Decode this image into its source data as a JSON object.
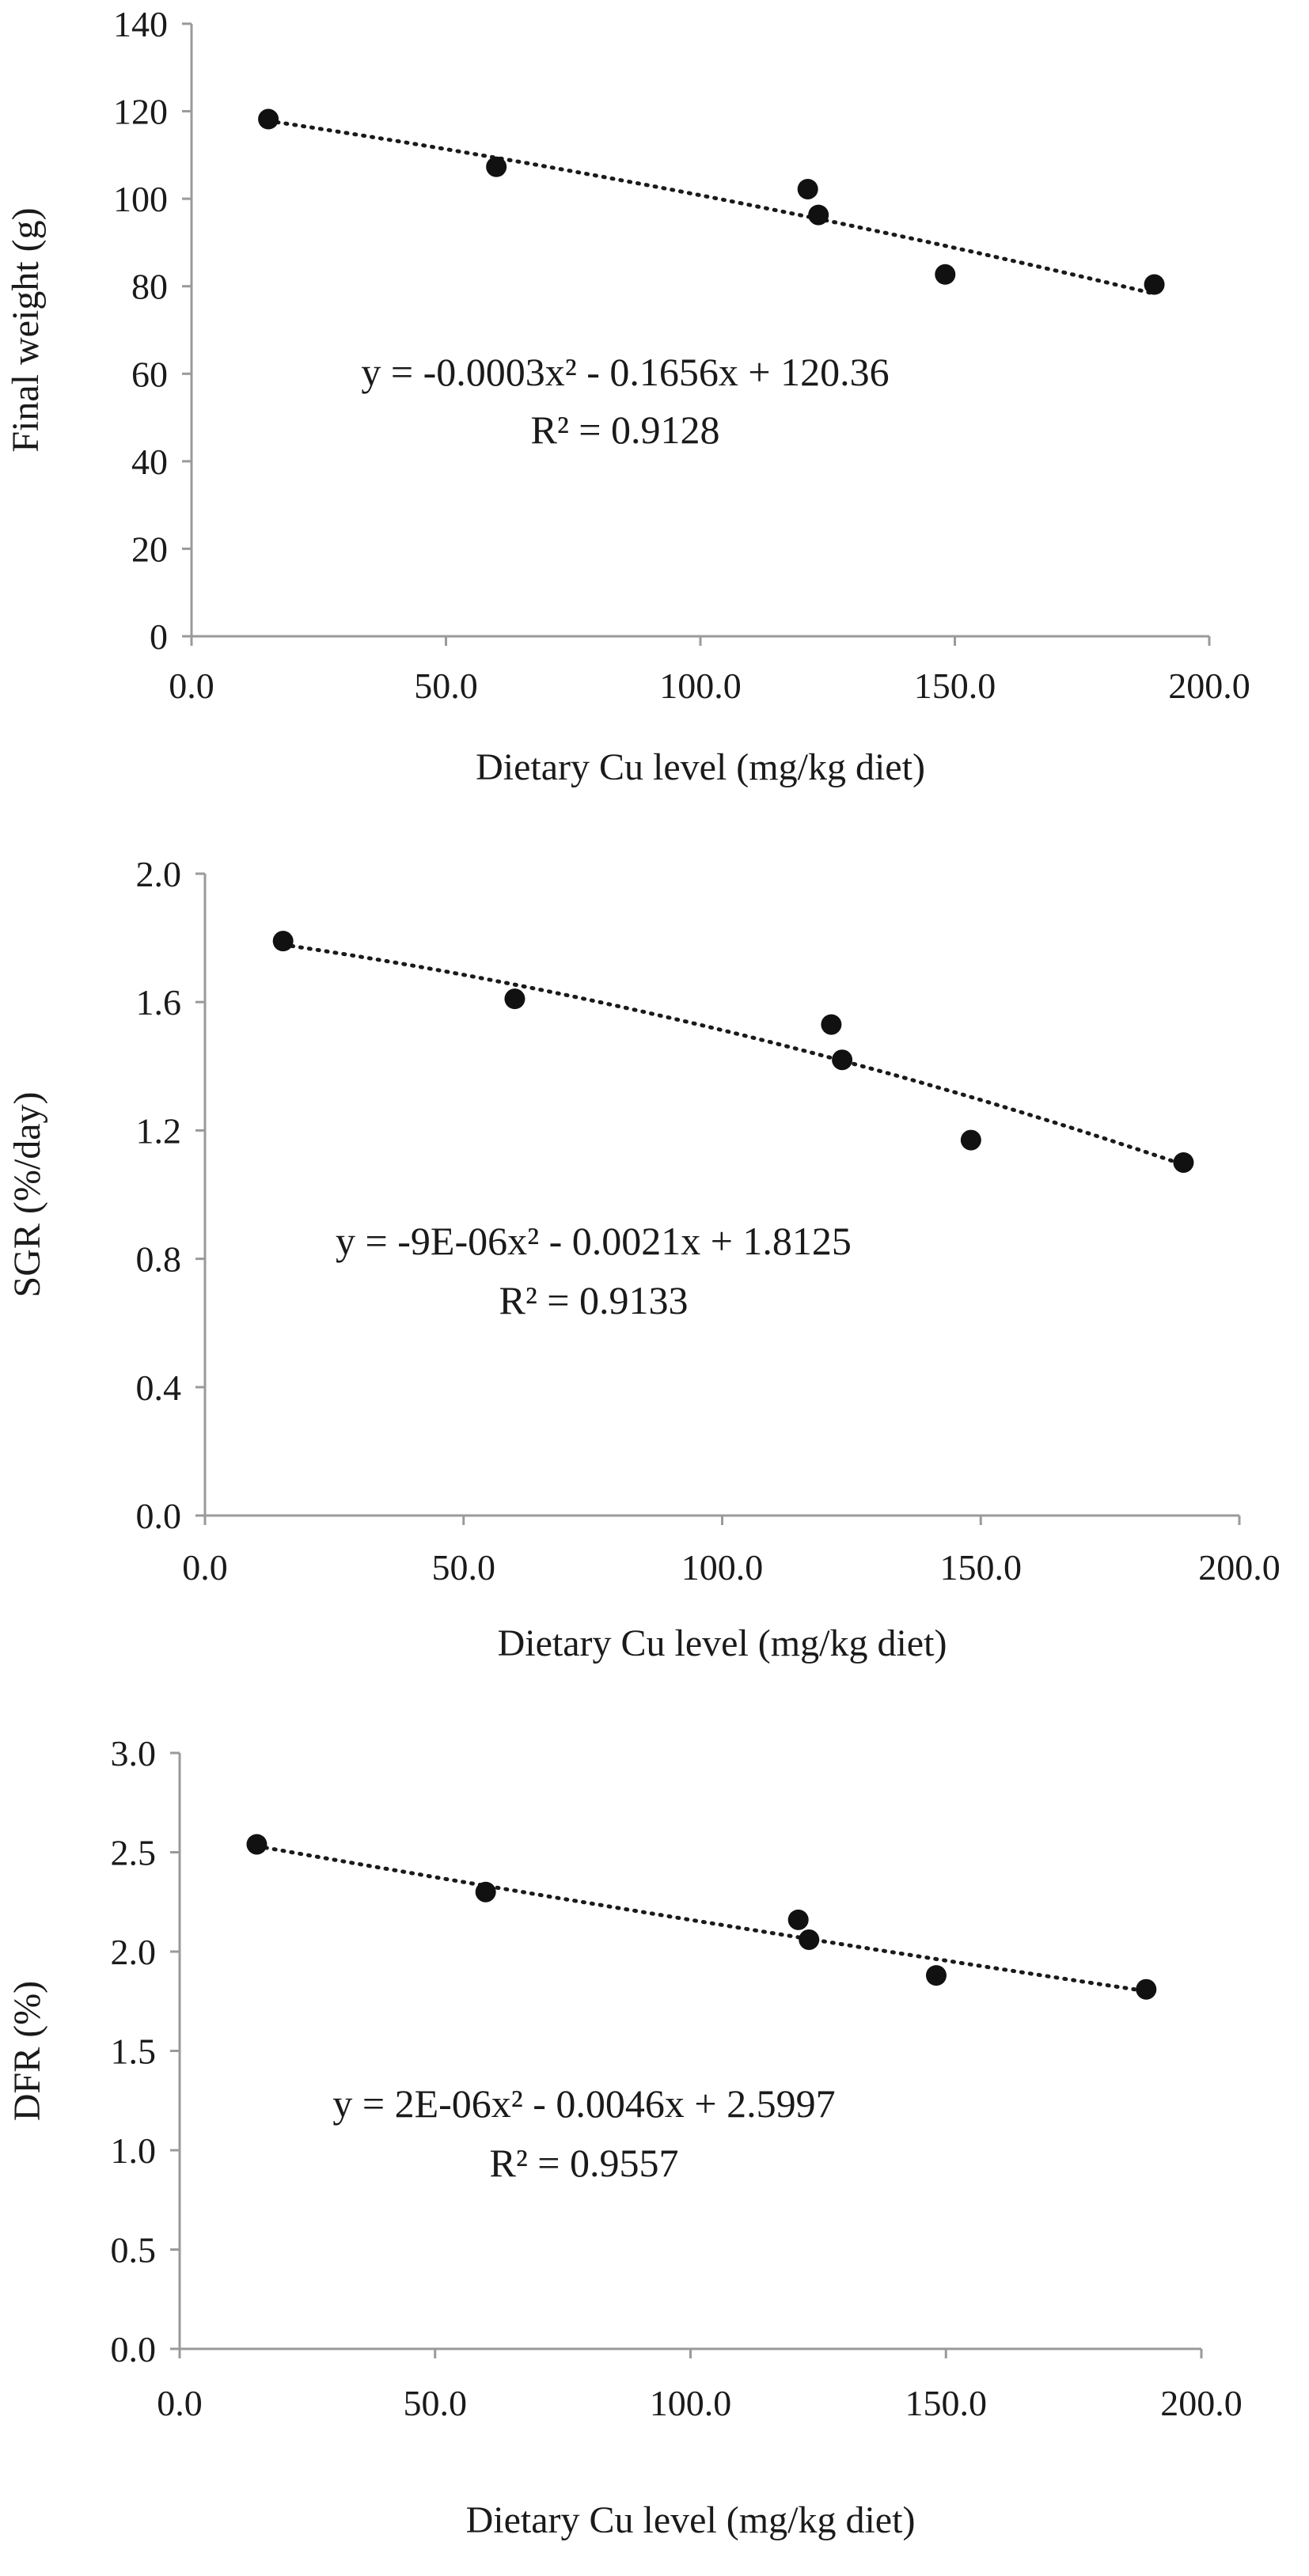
{
  "chart_data": [
    {
      "type": "scatter",
      "xlabel": "Dietary Cu level (mg/kg diet)",
      "ylabel": "Final weight (g)",
      "xlim": [
        0,
        200
      ],
      "ylim": [
        0,
        140
      ],
      "xticks": [
        "0.0",
        "50.0",
        "100.0",
        "150.0",
        "200.0"
      ],
      "yticks": [
        "0",
        "20",
        "40",
        "60",
        "80",
        "100",
        "120",
        "140"
      ],
      "grid": false,
      "series": [
        {
          "x": [
            15.1,
            59.9,
            121.1,
            123.2,
            148.1,
            189.2
          ],
          "y": [
            118.2,
            107.3,
            102.2,
            96.3,
            82.7,
            80.4
          ]
        }
      ],
      "trendline": {
        "kind": "polynomial",
        "order": 2,
        "style": "dotted",
        "x_range": [
          15.1,
          189.2
        ],
        "coef": [
          -0.0003,
          -0.1656,
          120.36
        ]
      },
      "equation": "y = -0.0003x² - 0.1656x + 120.36",
      "r2": "R² = 0.9128"
    },
    {
      "type": "scatter",
      "xlabel": "Dietary Cu level (mg/kg diet)",
      "ylabel": "SGR (%/day)",
      "xlim": [
        0,
        200
      ],
      "ylim": [
        0,
        2.0
      ],
      "xticks": [
        "0.0",
        "50.0",
        "100.0",
        "150.0",
        "200.0"
      ],
      "yticks": [
        "0.0",
        "0.4",
        "0.8",
        "1.2",
        "1.6",
        "2.0"
      ],
      "grid": false,
      "series": [
        {
          "x": [
            15.1,
            59.9,
            121.1,
            123.2,
            148.1,
            189.2
          ],
          "y": [
            1.79,
            1.61,
            1.53,
            1.42,
            1.17,
            1.1
          ]
        }
      ],
      "trendline": {
        "kind": "polynomial",
        "order": 2,
        "style": "dotted",
        "x_range": [
          15.1,
          189.2
        ],
        "coef": [
          -9e-06,
          -0.0021,
          1.8125
        ]
      },
      "equation": "y = -9E-06x² - 0.0021x + 1.8125",
      "r2": "R² = 0.9133"
    },
    {
      "type": "scatter",
      "xlabel": "Dietary Cu level (mg/kg diet)",
      "ylabel": "DFR (%)",
      "xlim": [
        0,
        200
      ],
      "ylim": [
        0,
        3.0
      ],
      "xticks": [
        "0.0",
        "50.0",
        "100.0",
        "150.0",
        "200.0"
      ],
      "yticks": [
        "0.0",
        "0.5",
        "1.0",
        "1.5",
        "2.0",
        "2.5",
        "3.0"
      ],
      "grid": false,
      "series": [
        {
          "x": [
            15.1,
            59.9,
            121.1,
            123.2,
            148.1,
            189.2
          ],
          "y": [
            2.54,
            2.3,
            2.16,
            2.06,
            1.88,
            1.81
          ]
        }
      ],
      "trendline": {
        "kind": "polynomial",
        "order": 2,
        "style": "dotted",
        "x_range": [
          15.1,
          189.2
        ],
        "coef": [
          2e-06,
          -0.0046,
          2.5997
        ]
      },
      "equation": "y = 2E-06x² - 0.0046x + 2.5997",
      "r2": "R² = 0.9557"
    }
  ]
}
